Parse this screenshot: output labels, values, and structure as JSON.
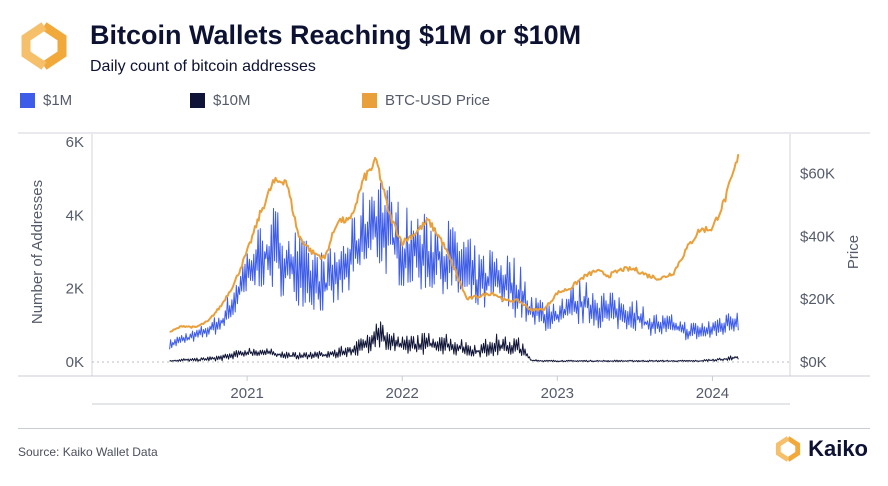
{
  "header": {
    "title": "Bitcoin Wallets Reaching $1M or $10M",
    "subtitle": "Daily count of bitcoin addresses",
    "logo_icon": "kaiko-logo-icon"
  },
  "legend": [
    {
      "label": "$1M",
      "color": "#3d5ce8"
    },
    {
      "label": "$10M",
      "color": "#101436"
    },
    {
      "label": "BTC-USD Price",
      "color": "#e9a03b"
    }
  ],
  "footer": {
    "source": "Source: Kaiko Wallet Data",
    "brand": "Kaiko"
  },
  "chart_data": {
    "type": "line",
    "title": "Bitcoin Wallets Reaching $1M or $10M",
    "subtitle": "Daily count of bitcoin addresses",
    "xlabel": "",
    "ylabel": "Number of Addresses",
    "y2label": "Price",
    "x_ticks": [
      "2021",
      "2022",
      "2023",
      "2024"
    ],
    "y_ticks": [
      "0K",
      "2K",
      "4K",
      "6K"
    ],
    "y2_ticks": [
      "$0K",
      "$20K",
      "$40K",
      "$60K"
    ],
    "ylim": [
      0,
      6000
    ],
    "y2lim": [
      0,
      70000
    ],
    "grid": false,
    "legend_position": "top-left",
    "x_range": [
      "2020-07",
      "2024-03"
    ],
    "x_months": [
      "2020-07",
      "2020-08",
      "2020-09",
      "2020-10",
      "2020-11",
      "2020-12",
      "2021-01",
      "2021-02",
      "2021-03",
      "2021-04",
      "2021-05",
      "2021-06",
      "2021-07",
      "2021-08",
      "2021-09",
      "2021-10",
      "2021-11",
      "2021-12",
      "2022-01",
      "2022-02",
      "2022-03",
      "2022-04",
      "2022-05",
      "2022-06",
      "2022-07",
      "2022-08",
      "2022-09",
      "2022-10",
      "2022-11",
      "2022-12",
      "2023-01",
      "2023-02",
      "2023-03",
      "2023-04",
      "2023-05",
      "2023-06",
      "2023-07",
      "2023-08",
      "2023-09",
      "2023-10",
      "2023-11",
      "2023-12",
      "2024-01",
      "2024-02",
      "2024-03"
    ],
    "series": [
      {
        "name": "$1M",
        "axis": "left",
        "color": "#3d5ce8",
        "monthly_low": [
          300,
          400,
          500,
          600,
          700,
          1000,
          1400,
          1700,
          1500,
          1300,
          1200,
          1100,
          1000,
          1200,
          1500,
          1900,
          2000,
          1800,
          1600,
          1600,
          1500,
          1500,
          1300,
          1100,
          1000,
          1100,
          1000,
          900,
          700,
          700,
          600,
          700,
          800,
          700,
          700,
          700,
          700,
          600,
          600,
          600,
          500,
          500,
          500,
          600,
          700
        ],
        "monthly_high": [
          600,
          800,
          900,
          1100,
          1400,
          2200,
          3200,
          3800,
          4300,
          4000,
          3500,
          3200,
          3000,
          3300,
          3800,
          4700,
          5500,
          4900,
          4300,
          4200,
          4000,
          4100,
          3800,
          3500,
          3000,
          3300,
          3100,
          2800,
          2000,
          1700,
          1800,
          2100,
          2300,
          2100,
          1900,
          1900,
          1800,
          1400,
          1300,
          1300,
          1100,
          1100,
          1200,
          1400,
          1600
        ]
      },
      {
        "name": "$10M",
        "axis": "left",
        "color": "#101436",
        "monthly_low": [
          0,
          0,
          0,
          0,
          0,
          50,
          100,
          100,
          100,
          50,
          50,
          50,
          50,
          50,
          100,
          100,
          150,
          100,
          100,
          100,
          100,
          100,
          100,
          50,
          50,
          50,
          50,
          50,
          0,
          0,
          0,
          0,
          0,
          0,
          0,
          0,
          0,
          0,
          0,
          0,
          0,
          0,
          0,
          0,
          50
        ],
        "monthly_high": [
          50,
          100,
          100,
          150,
          200,
          300,
          400,
          400,
          350,
          300,
          250,
          300,
          300,
          400,
          500,
          700,
          1400,
          900,
          700,
          800,
          800,
          900,
          700,
          600,
          500,
          800,
          700,
          700,
          100,
          50,
          50,
          50,
          50,
          50,
          50,
          50,
          50,
          50,
          50,
          50,
          50,
          50,
          100,
          150,
          200
        ]
      },
      {
        "name": "BTC-USD Price",
        "axis": "right",
        "color": "#e9a03b",
        "monthly": [
          9500,
          11500,
          11000,
          13000,
          18000,
          25000,
          35000,
          47000,
          57000,
          58000,
          40000,
          35000,
          33000,
          45000,
          45000,
          58000,
          64000,
          47000,
          38000,
          41000,
          45000,
          39000,
          30000,
          20000,
          21000,
          22000,
          19500,
          19500,
          16500,
          16800,
          22000,
          23500,
          27000,
          29000,
          27500,
          29500,
          29500,
          27500,
          26500,
          28500,
          36000,
          42000,
          42500,
          52000,
          65000
        ]
      }
    ]
  }
}
